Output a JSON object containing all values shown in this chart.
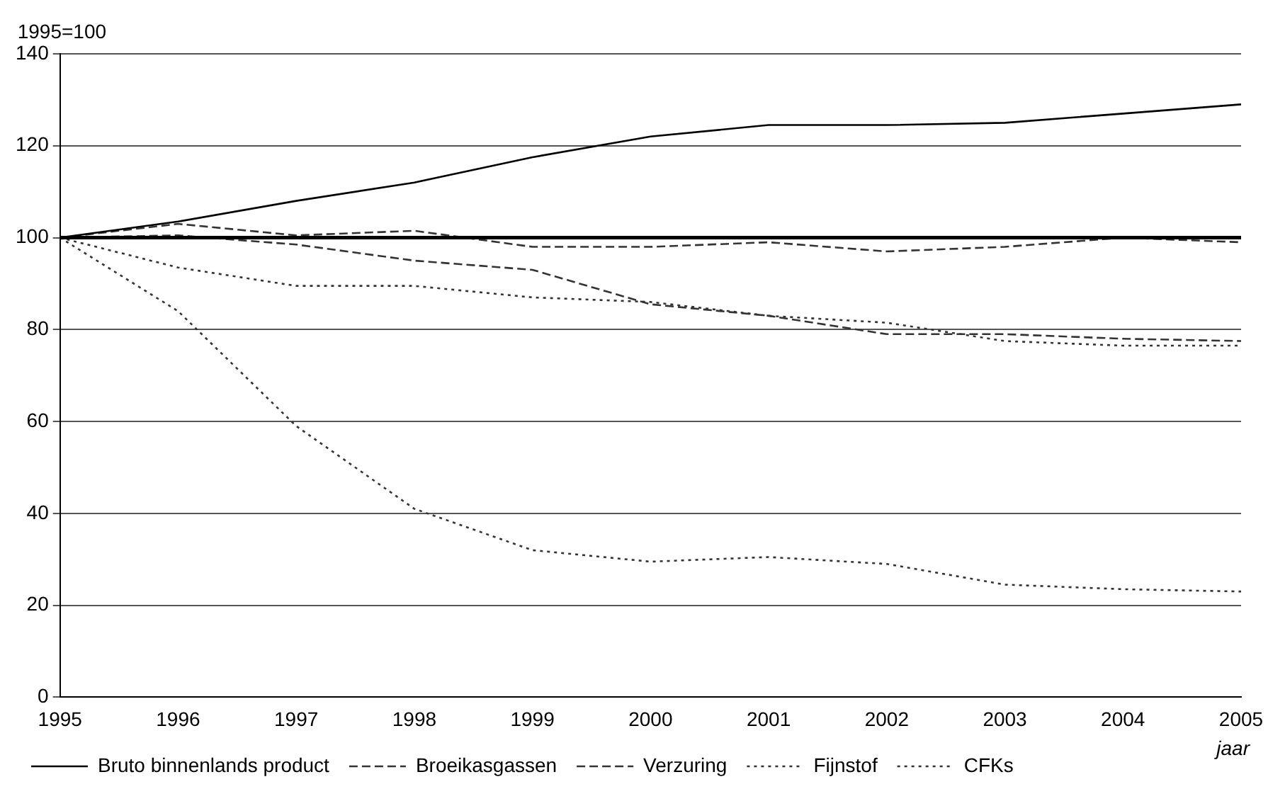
{
  "chart_data": {
    "type": "line",
    "ylabel": "1995=100",
    "xlabel": "jaar",
    "categories": [
      "1995",
      "1996",
      "1997",
      "1998",
      "1999",
      "2000",
      "2001",
      "2002",
      "2003",
      "2004",
      "2005"
    ],
    "series": [
      {
        "name": "Bruto binnenlands product",
        "color": "#000000",
        "line_style": "solid",
        "values": [
          100,
          103.5,
          108,
          112,
          117.5,
          122,
          124.5,
          124.5,
          125,
          127,
          129
        ]
      },
      {
        "name": "Broeikasgassen",
        "color": "#333333",
        "line_style": "dashed",
        "values": [
          100,
          103,
          100.5,
          101.5,
          98,
          98,
          99,
          97,
          98,
          100,
          99
        ]
      },
      {
        "name": "Verzuring",
        "color": "#333333",
        "line_style": "dashed",
        "values": [
          100,
          100.5,
          98.5,
          95,
          93,
          85.5,
          83,
          79,
          79,
          78,
          77.5
        ]
      },
      {
        "name": "Fijnstof",
        "color": "#333333",
        "line_style": "dotted",
        "values": [
          100,
          93.5,
          89.5,
          89.5,
          87,
          86,
          83,
          81.5,
          77.5,
          76.5,
          76.5
        ]
      },
      {
        "name": "CFKs",
        "color": "#333333",
        "line_style": "dotted",
        "values": [
          100,
          84,
          59,
          41,
          32,
          29.5,
          30.5,
          29,
          24.5,
          23.5,
          23
        ]
      }
    ],
    "ylim": [
      0,
      140
    ],
    "yticks": [
      0,
      20,
      40,
      60,
      80,
      100,
      120,
      140
    ],
    "grid": "y",
    "legend": "bottom",
    "marker": "none",
    "ref_lines": [
      {
        "axis": "y",
        "value": 100,
        "color": "#000000"
      }
    ]
  }
}
